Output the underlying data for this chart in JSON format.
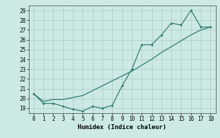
{
  "title": "",
  "xlabel": "Humidex (Indice chaleur)",
  "bg_color": "#cce9e5",
  "grid_color": "#b0cec9",
  "line_color": "#2d7a6e",
  "x_line1": [
    0,
    1,
    2,
    3,
    4,
    5,
    6,
    7,
    8,
    9,
    10,
    11,
    12,
    13,
    14,
    15,
    16,
    17,
    18
  ],
  "y_line1": [
    20.5,
    19.5,
    19.5,
    19.2,
    18.9,
    18.7,
    19.2,
    19.0,
    19.3,
    21.3,
    23.0,
    25.5,
    25.5,
    26.5,
    27.7,
    27.5,
    29.0,
    27.3,
    27.3
  ],
  "x_line2": [
    0,
    1,
    2,
    3,
    4,
    5,
    6,
    7,
    8,
    9,
    10,
    11,
    12,
    13,
    14,
    15,
    16,
    17,
    18
  ],
  "y_line2": [
    20.5,
    19.7,
    19.9,
    19.9,
    20.1,
    20.3,
    20.8,
    21.3,
    21.8,
    22.3,
    22.8,
    23.4,
    24.0,
    24.7,
    25.3,
    25.9,
    26.5,
    27.0,
    27.3
  ],
  "ylim": [
    18.5,
    29.5
  ],
  "xlim": [
    -0.5,
    18.5
  ],
  "yticks": [
    19,
    20,
    21,
    22,
    23,
    24,
    25,
    26,
    27,
    28,
    29
  ],
  "xticks": [
    0,
    1,
    2,
    3,
    4,
    5,
    6,
    7,
    8,
    9,
    10,
    11,
    12,
    13,
    14,
    15,
    16,
    17,
    18
  ]
}
